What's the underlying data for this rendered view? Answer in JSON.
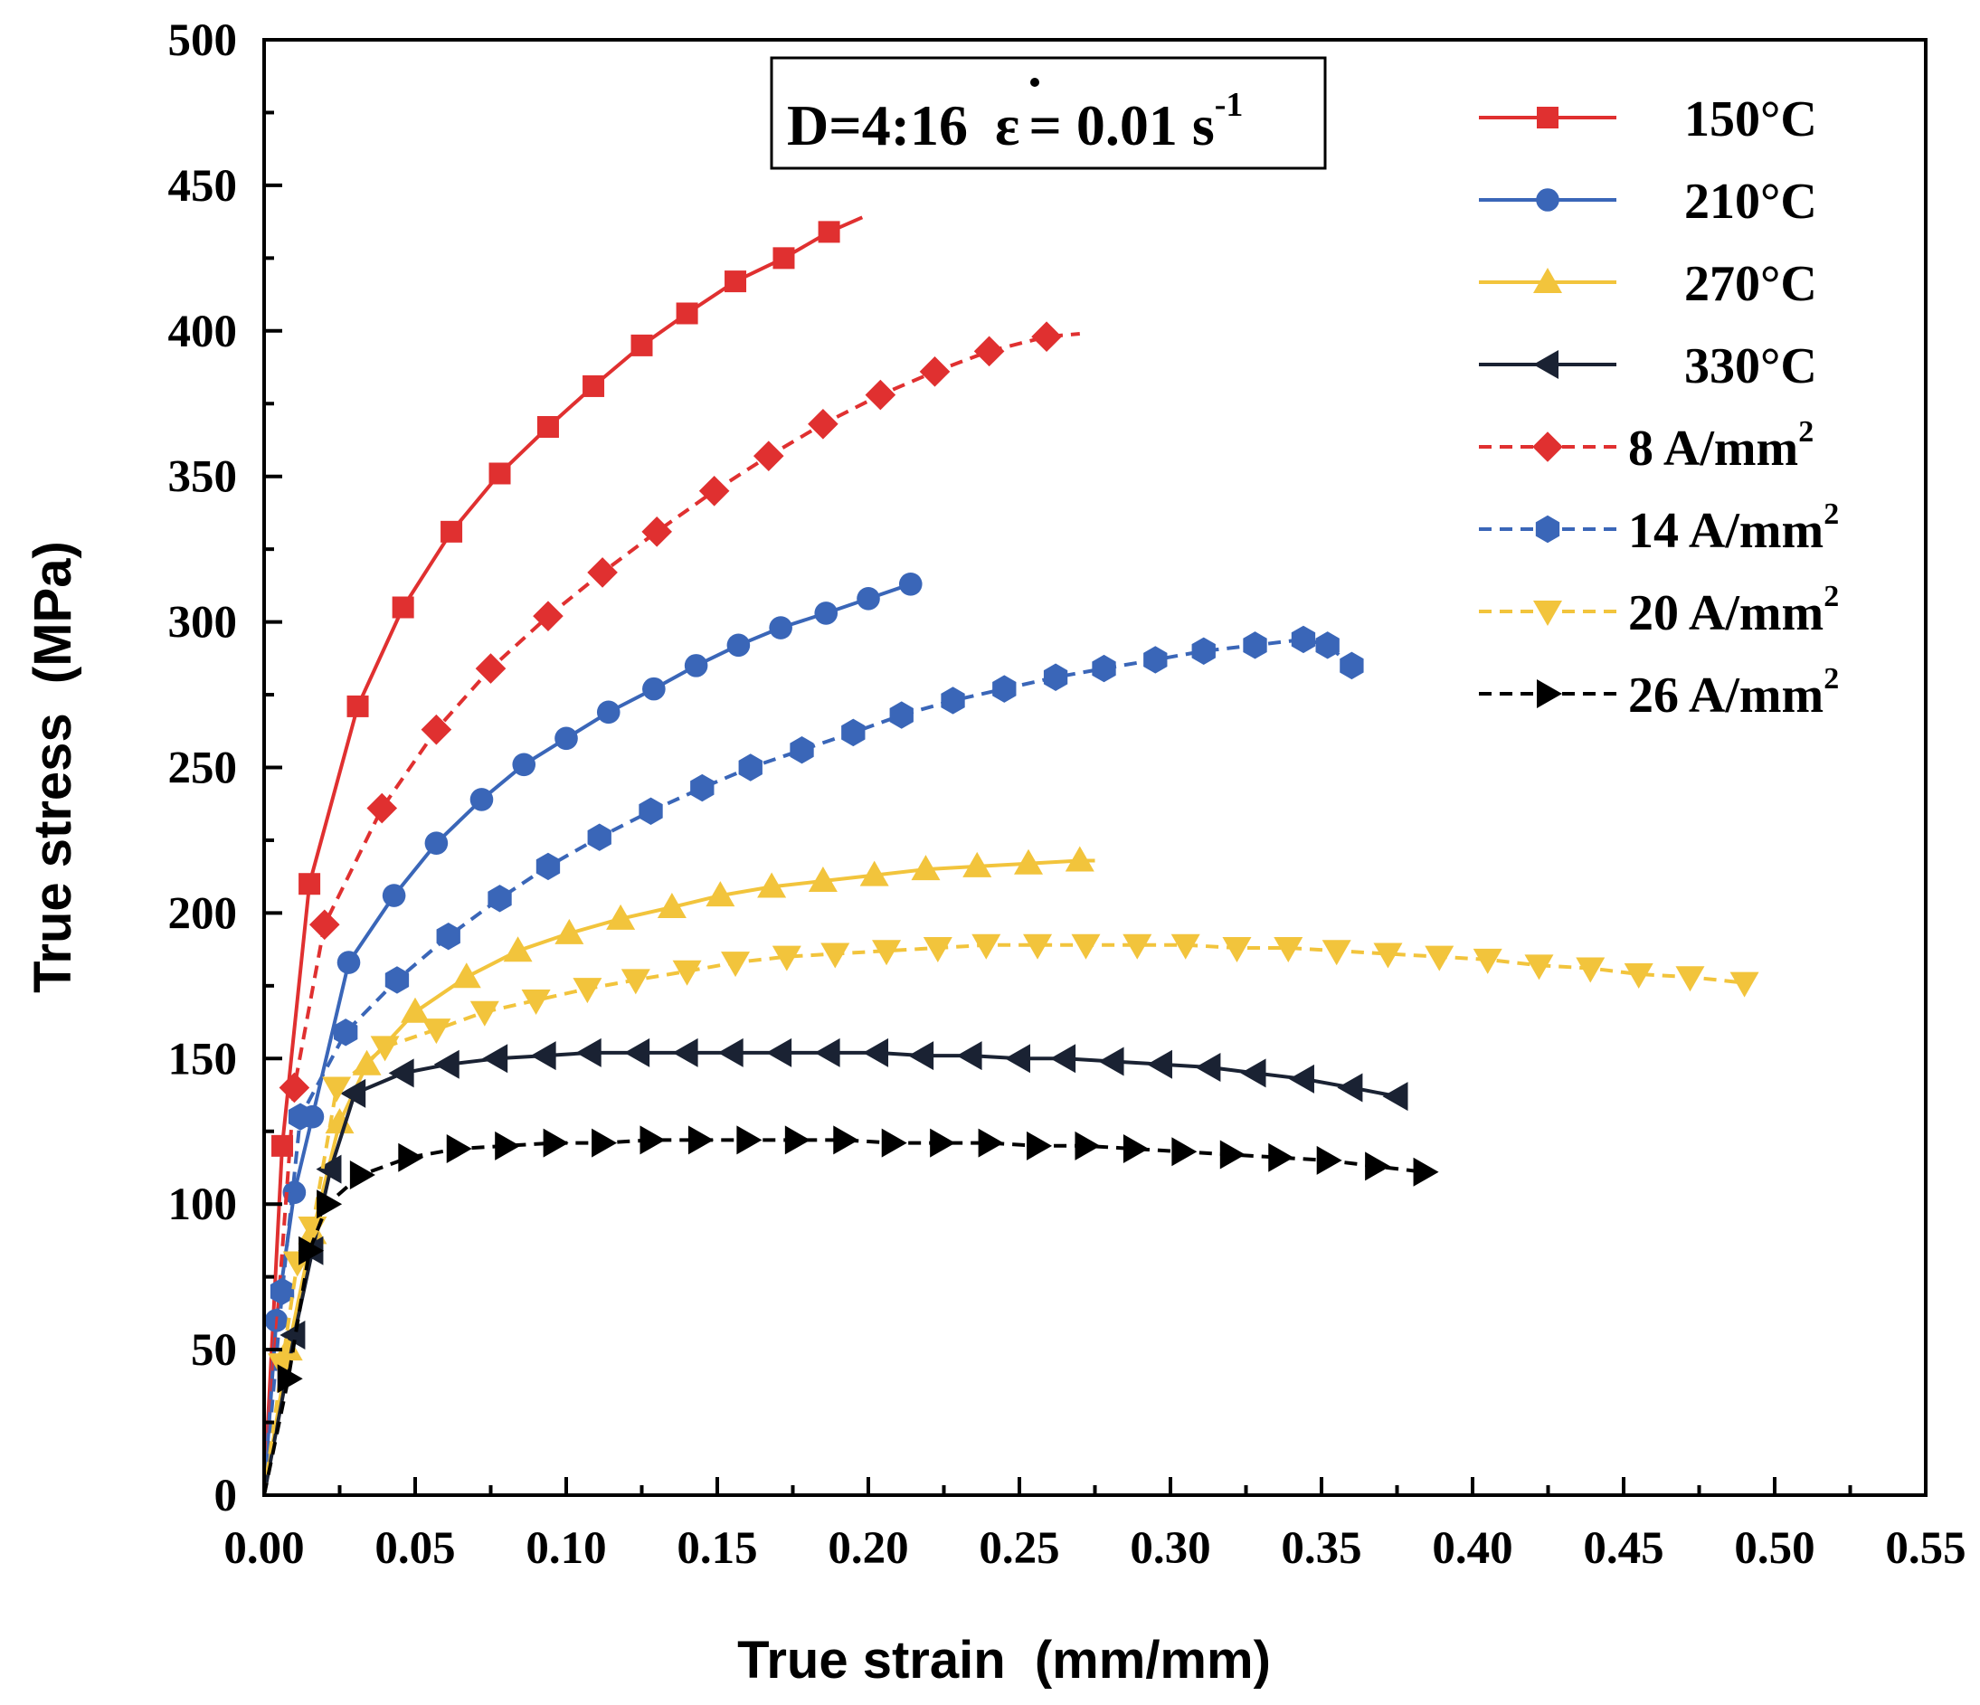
{
  "chart_data": {
    "type": "line",
    "xlabel": "True strain  (mm/mm)",
    "ylabel": "True stress  (MPa)",
    "xlim": [
      0,
      0.55
    ],
    "ylim": [
      0,
      500
    ],
    "x_ticks": [
      "0.00",
      "0.05",
      "0.10",
      "0.15",
      "0.20",
      "0.25",
      "0.30",
      "0.35",
      "0.40",
      "0.45",
      "0.50",
      "0.55"
    ],
    "y_ticks": [
      "0",
      "50",
      "100",
      "150",
      "200",
      "250",
      "300",
      "350",
      "400",
      "450",
      "500"
    ],
    "grid": false,
    "legend_position": "top-right",
    "condition": {
      "prefix": "D=4:16",
      "eps": "ε",
      "eq": "= 0.01 s",
      "sup": "-1"
    },
    "series": [
      {
        "name": "150°C",
        "unit_sup": "",
        "color": "#e03030",
        "dash": false,
        "marker": "square",
        "points": [
          [
            0,
            0
          ],
          [
            0.006,
            120
          ],
          [
            0.015,
            210
          ],
          [
            0.031,
            271
          ],
          [
            0.046,
            305
          ],
          [
            0.062,
            331
          ],
          [
            0.078,
            351
          ],
          [
            0.094,
            367
          ],
          [
            0.109,
            381
          ],
          [
            0.125,
            395
          ],
          [
            0.14,
            406
          ],
          [
            0.156,
            417
          ],
          [
            0.172,
            425
          ],
          [
            0.187,
            434
          ],
          [
            0.198,
            439
          ]
        ]
      },
      {
        "name": "210°C",
        "unit_sup": "",
        "color": "#3a66b8",
        "dash": false,
        "marker": "circle",
        "points": [
          [
            0,
            0
          ],
          [
            0.004,
            60
          ],
          [
            0.01,
            104
          ],
          [
            0.016,
            130
          ],
          [
            0.028,
            183
          ],
          [
            0.043,
            206
          ],
          [
            0.057,
            224
          ],
          [
            0.072,
            239
          ],
          [
            0.086,
            251
          ],
          [
            0.1,
            260
          ],
          [
            0.114,
            269
          ],
          [
            0.129,
            277
          ],
          [
            0.143,
            285
          ],
          [
            0.157,
            292
          ],
          [
            0.171,
            298
          ],
          [
            0.186,
            303
          ],
          [
            0.2,
            308
          ],
          [
            0.214,
            313
          ]
        ]
      },
      {
        "name": "270°C",
        "unit_sup": "",
        "color": "#f2c43c",
        "dash": false,
        "marker": "triangle-up",
        "points": [
          [
            0,
            0
          ],
          [
            0.008,
            50
          ],
          [
            0.016,
            90
          ],
          [
            0.025,
            128
          ],
          [
            0.034,
            148
          ],
          [
            0.05,
            166
          ],
          [
            0.067,
            178
          ],
          [
            0.084,
            187
          ],
          [
            0.101,
            193
          ],
          [
            0.118,
            198
          ],
          [
            0.135,
            202
          ],
          [
            0.151,
            206
          ],
          [
            0.168,
            209
          ],
          [
            0.185,
            211
          ],
          [
            0.202,
            213
          ],
          [
            0.219,
            215
          ],
          [
            0.236,
            216
          ],
          [
            0.253,
            217
          ],
          [
            0.27,
            218
          ],
          [
            0.275,
            218
          ]
        ]
      },
      {
        "name": "330°C",
        "unit_sup": "",
        "color": "#1a2233",
        "dash": false,
        "marker": "triangle-left",
        "points": [
          [
            0,
            0
          ],
          [
            0.01,
            55
          ],
          [
            0.016,
            84
          ],
          [
            0.022,
            112
          ],
          [
            0.03,
            138
          ],
          [
            0.046,
            145
          ],
          [
            0.061,
            148
          ],
          [
            0.077,
            150
          ],
          [
            0.093,
            151
          ],
          [
            0.108,
            152
          ],
          [
            0.124,
            152
          ],
          [
            0.14,
            152
          ],
          [
            0.155,
            152
          ],
          [
            0.171,
            152
          ],
          [
            0.187,
            152
          ],
          [
            0.203,
            152
          ],
          [
            0.218,
            151
          ],
          [
            0.234,
            151
          ],
          [
            0.25,
            150
          ],
          [
            0.265,
            150
          ],
          [
            0.281,
            149
          ],
          [
            0.297,
            148
          ],
          [
            0.313,
            147
          ],
          [
            0.328,
            145
          ],
          [
            0.344,
            143
          ],
          [
            0.36,
            140
          ],
          [
            0.375,
            137
          ]
        ]
      },
      {
        "name": "8 A/mm",
        "unit_sup": "2",
        "color": "#e03030",
        "dash": true,
        "marker": "diamond",
        "points": [
          [
            0,
            0
          ],
          [
            0.01,
            140
          ],
          [
            0.02,
            196
          ],
          [
            0.039,
            236
          ],
          [
            0.057,
            263
          ],
          [
            0.075,
            284
          ],
          [
            0.094,
            302
          ],
          [
            0.112,
            317
          ],
          [
            0.13,
            331
          ],
          [
            0.149,
            345
          ],
          [
            0.167,
            357
          ],
          [
            0.185,
            368
          ],
          [
            0.204,
            378
          ],
          [
            0.222,
            386
          ],
          [
            0.24,
            393
          ],
          [
            0.259,
            398
          ],
          [
            0.27,
            399
          ]
        ]
      },
      {
        "name": "14 A/mm",
        "unit_sup": "2",
        "color": "#3a66b8",
        "dash": true,
        "marker": "hexagon",
        "points": [
          [
            0,
            0
          ],
          [
            0.006,
            70
          ],
          [
            0.012,
            130
          ],
          [
            0.027,
            159
          ],
          [
            0.044,
            177
          ],
          [
            0.061,
            192
          ],
          [
            0.078,
            205
          ],
          [
            0.094,
            216
          ],
          [
            0.111,
            226
          ],
          [
            0.128,
            235
          ],
          [
            0.145,
            243
          ],
          [
            0.161,
            250
          ],
          [
            0.178,
            256
          ],
          [
            0.195,
            262
          ],
          [
            0.211,
            268
          ],
          [
            0.228,
            273
          ],
          [
            0.245,
            277
          ],
          [
            0.262,
            281
          ],
          [
            0.278,
            284
          ],
          [
            0.295,
            287
          ],
          [
            0.311,
            290
          ],
          [
            0.328,
            292
          ],
          [
            0.344,
            294
          ],
          [
            0.352,
            292
          ],
          [
            0.36,
            285
          ]
        ]
      },
      {
        "name": "20 A/mm",
        "unit_sup": "2",
        "color": "#f2c43c",
        "dash": true,
        "marker": "triangle-down",
        "points": [
          [
            0,
            0
          ],
          [
            0.006,
            45
          ],
          [
            0.011,
            80
          ],
          [
            0.016,
            92
          ],
          [
            0.024,
            140
          ],
          [
            0.04,
            154
          ],
          [
            0.057,
            160
          ],
          [
            0.073,
            166
          ],
          [
            0.09,
            170
          ],
          [
            0.107,
            174
          ],
          [
            0.123,
            177
          ],
          [
            0.14,
            180
          ],
          [
            0.156,
            183
          ],
          [
            0.173,
            185
          ],
          [
            0.189,
            186
          ],
          [
            0.206,
            187
          ],
          [
            0.223,
            188
          ],
          [
            0.239,
            189
          ],
          [
            0.256,
            189
          ],
          [
            0.272,
            189
          ],
          [
            0.289,
            189
          ],
          [
            0.305,
            189
          ],
          [
            0.322,
            188
          ],
          [
            0.339,
            188
          ],
          [
            0.355,
            187
          ],
          [
            0.372,
            186
          ],
          [
            0.389,
            185
          ],
          [
            0.405,
            184
          ],
          [
            0.422,
            182
          ],
          [
            0.439,
            181
          ],
          [
            0.455,
            179
          ],
          [
            0.472,
            178
          ],
          [
            0.49,
            176
          ]
        ]
      },
      {
        "name": "26 A/mm",
        "unit_sup": "2",
        "color": "#000000",
        "dash": true,
        "marker": "triangle-right",
        "points": [
          [
            0,
            0
          ],
          [
            0.008,
            40
          ],
          [
            0.015,
            84
          ],
          [
            0.021,
            100
          ],
          [
            0.032,
            110
          ],
          [
            0.048,
            116
          ],
          [
            0.064,
            119
          ],
          [
            0.08,
            120
          ],
          [
            0.096,
            121
          ],
          [
            0.112,
            121
          ],
          [
            0.128,
            122
          ],
          [
            0.144,
            122
          ],
          [
            0.16,
            122
          ],
          [
            0.176,
            122
          ],
          [
            0.192,
            122
          ],
          [
            0.208,
            121
          ],
          [
            0.224,
            121
          ],
          [
            0.24,
            121
          ],
          [
            0.256,
            120
          ],
          [
            0.272,
            120
          ],
          [
            0.288,
            119
          ],
          [
            0.304,
            118
          ],
          [
            0.32,
            117
          ],
          [
            0.336,
            116
          ],
          [
            0.352,
            115
          ],
          [
            0.368,
            113
          ],
          [
            0.384,
            111
          ]
        ]
      }
    ]
  }
}
